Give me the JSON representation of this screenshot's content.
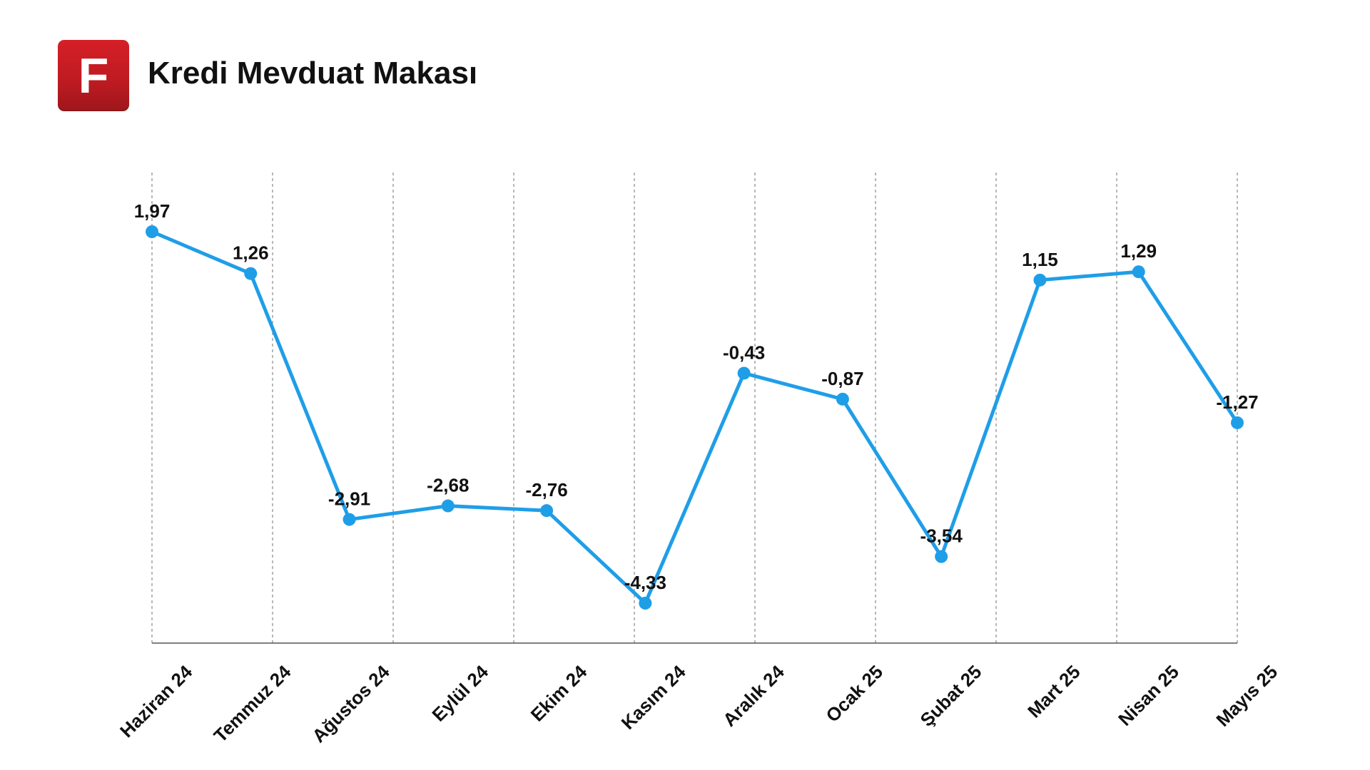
{
  "header": {
    "logo_letter": "F",
    "title": "Kredi Mevduat Makası"
  },
  "colors": {
    "accent": "#1f9ee8",
    "logo_red": "#c41e24",
    "grid": "#9a9a9a",
    "text": "#111111"
  },
  "chart_data": {
    "type": "line",
    "title": "Kredi Mevduat Makası",
    "xlabel": "",
    "ylabel": "",
    "categories": [
      "Haziran 24",
      "Temmuz 24",
      "Ağustos 24",
      "Eylül 24",
      "Ekim 24",
      "Kasım 24",
      "Aralık 24",
      "Ocak 25",
      "Şubat 25",
      "Mart 25",
      "Nisan 25",
      "Mayıs 25"
    ],
    "labels": [
      "1,97",
      "1,26",
      "-2,91",
      "-2,68",
      "-2,76",
      "-4,33",
      "-0,43",
      "-0,87",
      "-3,54",
      "1,15",
      "1,29",
      "-1,27"
    ],
    "series": [
      {
        "values": [
          1.97,
          1.26,
          -2.91,
          -2.68,
          -2.76,
          -4.33,
          -0.43,
          -0.87,
          -3.54,
          1.15,
          1.29,
          -1.27
        ]
      }
    ],
    "grid": "vertical dashed",
    "legend": "none"
  }
}
